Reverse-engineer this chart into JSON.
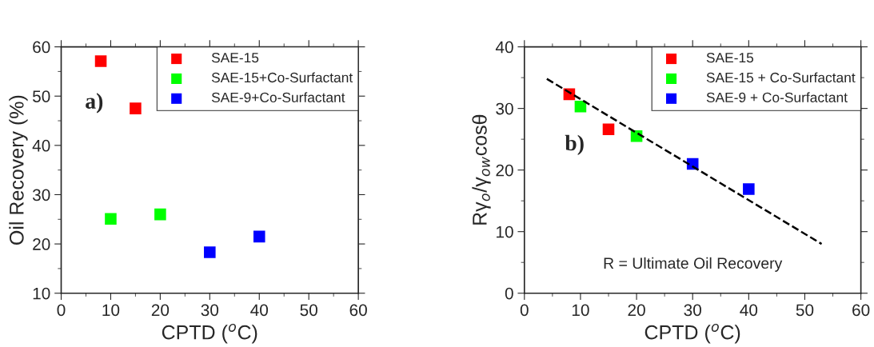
{
  "chart_data": [
    {
      "type": "scatter",
      "xlabel": "CPTD ($^{o}$C)",
      "ylabel": "Oil Recovery (%)",
      "xlim": [
        0,
        60
      ],
      "xticks": [
        0,
        10,
        20,
        30,
        40,
        50,
        60
      ],
      "ylim": [
        10,
        60
      ],
      "yticks": [
        10,
        20,
        30,
        40,
        50,
        60
      ],
      "marker": "square",
      "legend": "top right",
      "grid": false,
      "annotations": [
        "a)"
      ],
      "series": [
        {
          "name": "SAE-15",
          "color": "#ff0000",
          "x": [
            8,
            15
          ],
          "values": [
            57.1,
            47.5
          ]
        },
        {
          "name": "SAE-15+Co-Surfactant",
          "color": "#00ff00",
          "x": [
            10,
            20
          ],
          "values": [
            25.1,
            26.0
          ]
        },
        {
          "name": "SAE-9+Co-Surfactant",
          "color": "#0000ff",
          "x": [
            30,
            40
          ],
          "values": [
            18.3,
            21.5
          ]
        }
      ]
    },
    {
      "type": "scatter",
      "xlabel": "CPTD ($^{o}$C)",
      "ylabel": "Rγ$_{o}$/γ$_{ow}$cosθ",
      "xlim": [
        0,
        60
      ],
      "xticks": [
        0,
        10,
        20,
        30,
        40,
        50,
        60
      ],
      "ylim": [
        0,
        40
      ],
      "yticks": [
        0,
        10,
        20,
        30,
        40
      ],
      "marker": "square",
      "legend": "top right",
      "grid": false,
      "annotations": [
        "b)",
        "R = Ultimate Oil Recovery"
      ],
      "series": [
        {
          "name": "SAE-15",
          "color": "#ff0000",
          "x": [
            8,
            15
          ],
          "values": [
            32.3,
            26.6
          ]
        },
        {
          "name": "SAE-15 + Co-Surfactant",
          "color": "#00ff00",
          "x": [
            10,
            20
          ],
          "values": [
            30.3,
            25.5
          ]
        },
        {
          "name": "SAE-9 + Co-Surfactant",
          "color": "#0000ff",
          "x": [
            30,
            40
          ],
          "values": [
            21.0,
            16.9
          ]
        },
        {
          "type": "line",
          "color": "#000000",
          "line_style": "dashed",
          "marker": "none",
          "x": [
            4,
            53
          ],
          "values": [
            34.8,
            8.0
          ]
        }
      ]
    }
  ]
}
